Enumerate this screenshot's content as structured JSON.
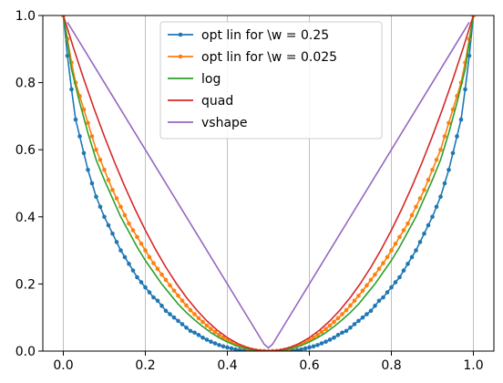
{
  "chart_data": {
    "type": "line",
    "xlim": [
      -0.05,
      1.05
    ],
    "ylim": [
      0.0,
      1.0
    ],
    "x_ticks": [
      {
        "value": 0.0,
        "label": "0.0"
      },
      {
        "value": 0.2,
        "label": "0.2"
      },
      {
        "value": 0.4,
        "label": "0.4"
      },
      {
        "value": 0.6,
        "label": "0.6"
      },
      {
        "value": 0.8,
        "label": "0.8"
      },
      {
        "value": 1.0,
        "label": "1.0"
      }
    ],
    "y_ticks": [
      {
        "value": 0.0,
        "label": "0.0"
      },
      {
        "value": 0.2,
        "label": "0.2"
      },
      {
        "value": 0.4,
        "label": "0.4"
      },
      {
        "value": 0.6,
        "label": "0.6"
      },
      {
        "value": 0.8,
        "label": "0.8"
      },
      {
        "value": 1.0,
        "label": "1.0"
      }
    ],
    "grid": "vertical",
    "legend_position": "top-center",
    "series": [
      {
        "name": "opt lin for \\w = 0.25",
        "color": "#1f77b4",
        "marker": true,
        "x": [
          0.0,
          0.01,
          0.02,
          0.03,
          0.04,
          0.05,
          0.06,
          0.07,
          0.08,
          0.09,
          0.1,
          0.11,
          0.12,
          0.13,
          0.14,
          0.15,
          0.16,
          0.17,
          0.18,
          0.19,
          0.2,
          0.21,
          0.22,
          0.23,
          0.24,
          0.25,
          0.26,
          0.27,
          0.28,
          0.29,
          0.3,
          0.31,
          0.32,
          0.33,
          0.34,
          0.35,
          0.36,
          0.37,
          0.38,
          0.39,
          0.4,
          0.41,
          0.42,
          0.43,
          0.44,
          0.45,
          0.46,
          0.47,
          0.48,
          0.49,
          0.5,
          0.51,
          0.52,
          0.53,
          0.54,
          0.55,
          0.56,
          0.57,
          0.58,
          0.59,
          0.6,
          0.61,
          0.62,
          0.63,
          0.64,
          0.65,
          0.66,
          0.67,
          0.68,
          0.69,
          0.7,
          0.71,
          0.72,
          0.73,
          0.74,
          0.75,
          0.76,
          0.77,
          0.78,
          0.79,
          0.8,
          0.81,
          0.82,
          0.83,
          0.84,
          0.85,
          0.86,
          0.87,
          0.88,
          0.89,
          0.9,
          0.91,
          0.92,
          0.93,
          0.94,
          0.95,
          0.96,
          0.97,
          0.98,
          0.99,
          1.0
        ],
        "y": [
          1.0,
          0.88,
          0.78,
          0.69,
          0.64,
          0.59,
          0.54,
          0.5,
          0.46,
          0.43,
          0.4,
          0.375,
          0.35,
          0.325,
          0.3,
          0.28,
          0.26,
          0.24,
          0.22,
          0.205,
          0.19,
          0.175,
          0.16,
          0.15,
          0.135,
          0.12,
          0.11,
          0.1,
          0.09,
          0.08,
          0.07,
          0.06,
          0.055,
          0.048,
          0.04,
          0.034,
          0.028,
          0.023,
          0.018,
          0.014,
          0.011,
          0.008,
          0.005,
          0.003,
          0.002,
          0.001,
          0.0005,
          0.0002,
          0.0001,
          0.0,
          0.0,
          0.0,
          0.0001,
          0.0002,
          0.0005,
          0.001,
          0.002,
          0.003,
          0.005,
          0.008,
          0.011,
          0.014,
          0.018,
          0.023,
          0.028,
          0.034,
          0.04,
          0.048,
          0.055,
          0.06,
          0.07,
          0.08,
          0.09,
          0.1,
          0.11,
          0.12,
          0.135,
          0.15,
          0.16,
          0.175,
          0.19,
          0.205,
          0.22,
          0.24,
          0.26,
          0.28,
          0.3,
          0.325,
          0.35,
          0.375,
          0.4,
          0.43,
          0.46,
          0.5,
          0.54,
          0.59,
          0.64,
          0.69,
          0.78,
          0.88,
          1.0
        ]
      },
      {
        "name": "opt lin for \\w = 0.025",
        "color": "#ff7f0e",
        "marker": true,
        "x": [
          0.0,
          0.01,
          0.02,
          0.03,
          0.04,
          0.05,
          0.06,
          0.07,
          0.08,
          0.09,
          0.1,
          0.11,
          0.12,
          0.13,
          0.14,
          0.15,
          0.16,
          0.17,
          0.18,
          0.19,
          0.2,
          0.21,
          0.22,
          0.23,
          0.24,
          0.25,
          0.26,
          0.27,
          0.28,
          0.29,
          0.3,
          0.31,
          0.32,
          0.33,
          0.34,
          0.35,
          0.36,
          0.37,
          0.38,
          0.39,
          0.4,
          0.41,
          0.42,
          0.43,
          0.44,
          0.45,
          0.46,
          0.47,
          0.48,
          0.49,
          0.5,
          0.51,
          0.52,
          0.53,
          0.54,
          0.55,
          0.56,
          0.57,
          0.58,
          0.59,
          0.6,
          0.61,
          0.62,
          0.63,
          0.64,
          0.65,
          0.66,
          0.67,
          0.68,
          0.69,
          0.7,
          0.71,
          0.72,
          0.73,
          0.74,
          0.75,
          0.76,
          0.77,
          0.78,
          0.79,
          0.8,
          0.81,
          0.82,
          0.83,
          0.84,
          0.85,
          0.86,
          0.87,
          0.88,
          0.89,
          0.9,
          0.91,
          0.92,
          0.93,
          0.94,
          0.95,
          0.96,
          0.97,
          0.98,
          0.99,
          1.0
        ],
        "y": [
          1.0,
          0.93,
          0.86,
          0.8,
          0.76,
          0.72,
          0.68,
          0.64,
          0.6,
          0.57,
          0.54,
          0.51,
          0.48,
          0.455,
          0.43,
          0.405,
          0.38,
          0.36,
          0.34,
          0.32,
          0.3,
          0.28,
          0.262,
          0.245,
          0.228,
          0.212,
          0.196,
          0.18,
          0.165,
          0.15,
          0.136,
          0.122,
          0.11,
          0.098,
          0.087,
          0.076,
          0.066,
          0.057,
          0.048,
          0.04,
          0.033,
          0.026,
          0.02,
          0.015,
          0.011,
          0.007,
          0.004,
          0.002,
          0.0008,
          0.0002,
          0.0,
          0.0002,
          0.0008,
          0.002,
          0.004,
          0.007,
          0.011,
          0.015,
          0.02,
          0.026,
          0.033,
          0.04,
          0.048,
          0.057,
          0.066,
          0.076,
          0.087,
          0.098,
          0.11,
          0.122,
          0.136,
          0.15,
          0.165,
          0.18,
          0.196,
          0.212,
          0.228,
          0.245,
          0.262,
          0.28,
          0.3,
          0.32,
          0.34,
          0.36,
          0.38,
          0.405,
          0.43,
          0.455,
          0.48,
          0.51,
          0.54,
          0.57,
          0.6,
          0.64,
          0.68,
          0.72,
          0.76,
          0.8,
          0.86,
          0.93,
          1.0
        ]
      },
      {
        "name": "log",
        "color": "#2ca02c",
        "marker": false,
        "x": [
          0.0,
          0.02,
          0.04,
          0.06,
          0.08,
          0.1,
          0.12,
          0.14,
          0.16,
          0.18,
          0.2,
          0.22,
          0.24,
          0.26,
          0.28,
          0.3,
          0.32,
          0.34,
          0.36,
          0.38,
          0.4,
          0.42,
          0.44,
          0.46,
          0.48,
          0.5,
          0.52,
          0.54,
          0.56,
          0.58,
          0.6,
          0.62,
          0.64,
          0.66,
          0.68,
          0.7,
          0.72,
          0.74,
          0.76,
          0.78,
          0.8,
          0.82,
          0.84,
          0.86,
          0.88,
          0.9,
          0.92,
          0.94,
          0.96,
          0.98,
          1.0
        ],
        "y": [
          1.0,
          0.84,
          0.74,
          0.65,
          0.57,
          0.51,
          0.455,
          0.4,
          0.355,
          0.31,
          0.27,
          0.235,
          0.2,
          0.17,
          0.14,
          0.115,
          0.093,
          0.073,
          0.055,
          0.04,
          0.027,
          0.017,
          0.009,
          0.004,
          0.001,
          0.0,
          0.001,
          0.004,
          0.009,
          0.017,
          0.027,
          0.04,
          0.055,
          0.073,
          0.093,
          0.115,
          0.14,
          0.17,
          0.2,
          0.235,
          0.27,
          0.31,
          0.355,
          0.4,
          0.455,
          0.51,
          0.57,
          0.65,
          0.74,
          0.84,
          1.0
        ]
      },
      {
        "name": "quad",
        "color": "#d62728",
        "marker": false,
        "x": [
          0.0,
          0.025,
          0.05,
          0.075,
          0.1,
          0.125,
          0.15,
          0.175,
          0.2,
          0.225,
          0.25,
          0.275,
          0.3,
          0.325,
          0.35,
          0.375,
          0.4,
          0.425,
          0.45,
          0.475,
          0.5,
          0.525,
          0.55,
          0.575,
          0.6,
          0.625,
          0.65,
          0.675,
          0.7,
          0.725,
          0.75,
          0.775,
          0.8,
          0.825,
          0.85,
          0.875,
          0.9,
          0.925,
          0.95,
          0.975,
          1.0
        ],
        "y": [
          1.0,
          0.9025,
          0.81,
          0.7225,
          0.64,
          0.5625,
          0.49,
          0.4225,
          0.36,
          0.3025,
          0.25,
          0.2025,
          0.16,
          0.1225,
          0.09,
          0.0625,
          0.04,
          0.0225,
          0.01,
          0.0025,
          0.0,
          0.0025,
          0.01,
          0.0225,
          0.04,
          0.0625,
          0.09,
          0.1225,
          0.16,
          0.2025,
          0.25,
          0.3025,
          0.36,
          0.4225,
          0.49,
          0.5625,
          0.64,
          0.7225,
          0.81,
          0.9025,
          1.0
        ]
      },
      {
        "name": "vshape",
        "color": "#9467bd",
        "marker": false,
        "x": [
          0.01,
          0.49,
          0.5,
          0.51,
          0.99
        ],
        "y": [
          0.98,
          0.02,
          0.01,
          0.02,
          0.98
        ]
      }
    ]
  }
}
